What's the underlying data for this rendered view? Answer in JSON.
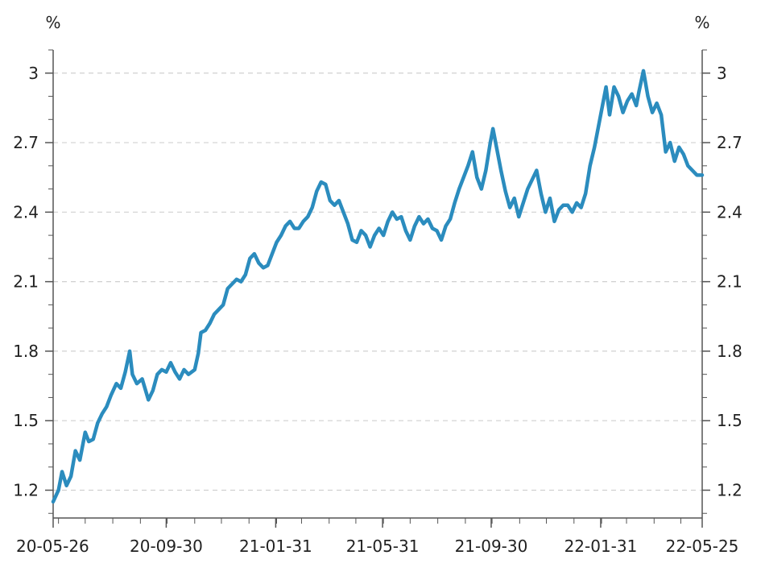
{
  "chart_data": {
    "type": "line",
    "title": "",
    "xlabel": "",
    "ylabel": "",
    "y_unit_left": "%",
    "y_unit_right": "%",
    "ylim": [
      1.08,
      3.1
    ],
    "y_ticks": [
      1.2,
      1.5,
      1.8,
      2.1,
      2.4,
      2.7,
      3
    ],
    "y_tick_labels": [
      "1.2",
      "1.5",
      "1.8",
      "2.1",
      "2.4",
      "2.7",
      "3"
    ],
    "x_range": [
      "2020-05-26",
      "2022-05-25"
    ],
    "x_ticks": [
      "2020-05-26",
      "2020-09-30",
      "2021-01-31",
      "2021-05-31",
      "2021-09-30",
      "2022-01-31",
      "2022-05-25"
    ],
    "x_tick_labels": [
      "20-05-26",
      "20-09-30",
      "21-01-31",
      "21-05-31",
      "21-09-30",
      "22-01-31",
      "22-05-25"
    ],
    "grid": "horizontal dashed",
    "line_color": "#2b8cbe",
    "series": [
      {
        "name": "",
        "points": [
          [
            "2020-05-26",
            1.15
          ],
          [
            "2020-06-01",
            1.2
          ],
          [
            "2020-06-05",
            1.28
          ],
          [
            "2020-06-10",
            1.22
          ],
          [
            "2020-06-15",
            1.26
          ],
          [
            "2020-06-20",
            1.37
          ],
          [
            "2020-06-25",
            1.33
          ],
          [
            "2020-07-01",
            1.45
          ],
          [
            "2020-07-05",
            1.41
          ],
          [
            "2020-07-10",
            1.42
          ],
          [
            "2020-07-15",
            1.49
          ],
          [
            "2020-07-20",
            1.53
          ],
          [
            "2020-07-25",
            1.56
          ],
          [
            "2020-07-30",
            1.61
          ],
          [
            "2020-08-05",
            1.66
          ],
          [
            "2020-08-10",
            1.64
          ],
          [
            "2020-08-15",
            1.71
          ],
          [
            "2020-08-20",
            1.8
          ],
          [
            "2020-08-23",
            1.7
          ],
          [
            "2020-08-28",
            1.66
          ],
          [
            "2020-09-03",
            1.68
          ],
          [
            "2020-09-10",
            1.59
          ],
          [
            "2020-09-15",
            1.63
          ],
          [
            "2020-09-20",
            1.7
          ],
          [
            "2020-09-25",
            1.72
          ],
          [
            "2020-09-30",
            1.71
          ],
          [
            "2020-10-05",
            1.75
          ],
          [
            "2020-10-10",
            1.71
          ],
          [
            "2020-10-15",
            1.68
          ],
          [
            "2020-10-20",
            1.72
          ],
          [
            "2020-10-25",
            1.7
          ],
          [
            "2020-11-01",
            1.72
          ],
          [
            "2020-11-05",
            1.79
          ],
          [
            "2020-11-08",
            1.88
          ],
          [
            "2020-11-13",
            1.89
          ],
          [
            "2020-11-18",
            1.92
          ],
          [
            "2020-11-23",
            1.96
          ],
          [
            "2020-11-28",
            1.98
          ],
          [
            "2020-12-03",
            2.0
          ],
          [
            "2020-12-08",
            2.07
          ],
          [
            "2020-12-13",
            2.09
          ],
          [
            "2020-12-18",
            2.11
          ],
          [
            "2020-12-23",
            2.1
          ],
          [
            "2020-12-28",
            2.13
          ],
          [
            "2021-01-02",
            2.2
          ],
          [
            "2021-01-07",
            2.22
          ],
          [
            "2021-01-12",
            2.18
          ],
          [
            "2021-01-17",
            2.16
          ],
          [
            "2021-01-22",
            2.17
          ],
          [
            "2021-01-27",
            2.22
          ],
          [
            "2021-02-01",
            2.27
          ],
          [
            "2021-02-06",
            2.3
          ],
          [
            "2021-02-11",
            2.34
          ],
          [
            "2021-02-16",
            2.36
          ],
          [
            "2021-02-21",
            2.33
          ],
          [
            "2021-02-26",
            2.33
          ],
          [
            "2021-03-03",
            2.36
          ],
          [
            "2021-03-08",
            2.38
          ],
          [
            "2021-03-13",
            2.42
          ],
          [
            "2021-03-18",
            2.49
          ],
          [
            "2021-03-23",
            2.53
          ],
          [
            "2021-03-28",
            2.52
          ],
          [
            "2021-04-02",
            2.45
          ],
          [
            "2021-04-07",
            2.43
          ],
          [
            "2021-04-12",
            2.45
          ],
          [
            "2021-04-17",
            2.4
          ],
          [
            "2021-04-22",
            2.35
          ],
          [
            "2021-04-27",
            2.28
          ],
          [
            "2021-05-02",
            2.27
          ],
          [
            "2021-05-07",
            2.32
          ],
          [
            "2021-05-12",
            2.3
          ],
          [
            "2021-05-17",
            2.25
          ],
          [
            "2021-05-22",
            2.3
          ],
          [
            "2021-05-27",
            2.33
          ],
          [
            "2021-06-01",
            2.3
          ],
          [
            "2021-06-06",
            2.36
          ],
          [
            "2021-06-11",
            2.4
          ],
          [
            "2021-06-16",
            2.37
          ],
          [
            "2021-06-21",
            2.38
          ],
          [
            "2021-06-26",
            2.32
          ],
          [
            "2021-07-01",
            2.28
          ],
          [
            "2021-07-06",
            2.34
          ],
          [
            "2021-07-11",
            2.38
          ],
          [
            "2021-07-16",
            2.35
          ],
          [
            "2021-07-21",
            2.37
          ],
          [
            "2021-07-26",
            2.33
          ],
          [
            "2021-07-31",
            2.32
          ],
          [
            "2021-08-05",
            2.28
          ],
          [
            "2021-08-10",
            2.34
          ],
          [
            "2021-08-15",
            2.37
          ],
          [
            "2021-08-20",
            2.44
          ],
          [
            "2021-08-25",
            2.5
          ],
          [
            "2021-08-30",
            2.55
          ],
          [
            "2021-09-04",
            2.6
          ],
          [
            "2021-09-09",
            2.66
          ],
          [
            "2021-09-14",
            2.55
          ],
          [
            "2021-09-19",
            2.5
          ],
          [
            "2021-09-24",
            2.58
          ],
          [
            "2021-09-29",
            2.7
          ],
          [
            "2021-10-02",
            2.76
          ],
          [
            "2021-10-06",
            2.68
          ],
          [
            "2021-10-11",
            2.58
          ],
          [
            "2021-10-16",
            2.49
          ],
          [
            "2021-10-21",
            2.42
          ],
          [
            "2021-10-26",
            2.46
          ],
          [
            "2021-10-31",
            2.38
          ],
          [
            "2021-11-05",
            2.44
          ],
          [
            "2021-11-10",
            2.5
          ],
          [
            "2021-11-15",
            2.54
          ],
          [
            "2021-11-20",
            2.58
          ],
          [
            "2021-11-25",
            2.48
          ],
          [
            "2021-11-30",
            2.4
          ],
          [
            "2021-12-05",
            2.46
          ],
          [
            "2021-12-10",
            2.36
          ],
          [
            "2021-12-15",
            2.41
          ],
          [
            "2021-12-20",
            2.43
          ],
          [
            "2021-12-25",
            2.43
          ],
          [
            "2021-12-30",
            2.4
          ],
          [
            "2022-01-04",
            2.44
          ],
          [
            "2022-01-09",
            2.42
          ],
          [
            "2022-01-14",
            2.48
          ],
          [
            "2022-01-19",
            2.6
          ],
          [
            "2022-01-24",
            2.68
          ],
          [
            "2022-01-29",
            2.78
          ],
          [
            "2022-02-03",
            2.88
          ],
          [
            "2022-02-06",
            2.94
          ],
          [
            "2022-02-10",
            2.82
          ],
          [
            "2022-02-15",
            2.94
          ],
          [
            "2022-02-20",
            2.9
          ],
          [
            "2022-02-25",
            2.83
          ],
          [
            "2022-03-02",
            2.88
          ],
          [
            "2022-03-07",
            2.91
          ],
          [
            "2022-03-12",
            2.86
          ],
          [
            "2022-03-15",
            2.92
          ],
          [
            "2022-03-20",
            3.01
          ],
          [
            "2022-03-25",
            2.9
          ],
          [
            "2022-03-30",
            2.83
          ],
          [
            "2022-04-04",
            2.87
          ],
          [
            "2022-04-09",
            2.82
          ],
          [
            "2022-04-14",
            2.66
          ],
          [
            "2022-04-19",
            2.7
          ],
          [
            "2022-04-24",
            2.62
          ],
          [
            "2022-04-29",
            2.68
          ],
          [
            "2022-05-04",
            2.65
          ],
          [
            "2022-05-09",
            2.6
          ],
          [
            "2022-05-14",
            2.58
          ],
          [
            "2022-05-19",
            2.56
          ],
          [
            "2022-05-25",
            2.56
          ]
        ]
      }
    ]
  }
}
